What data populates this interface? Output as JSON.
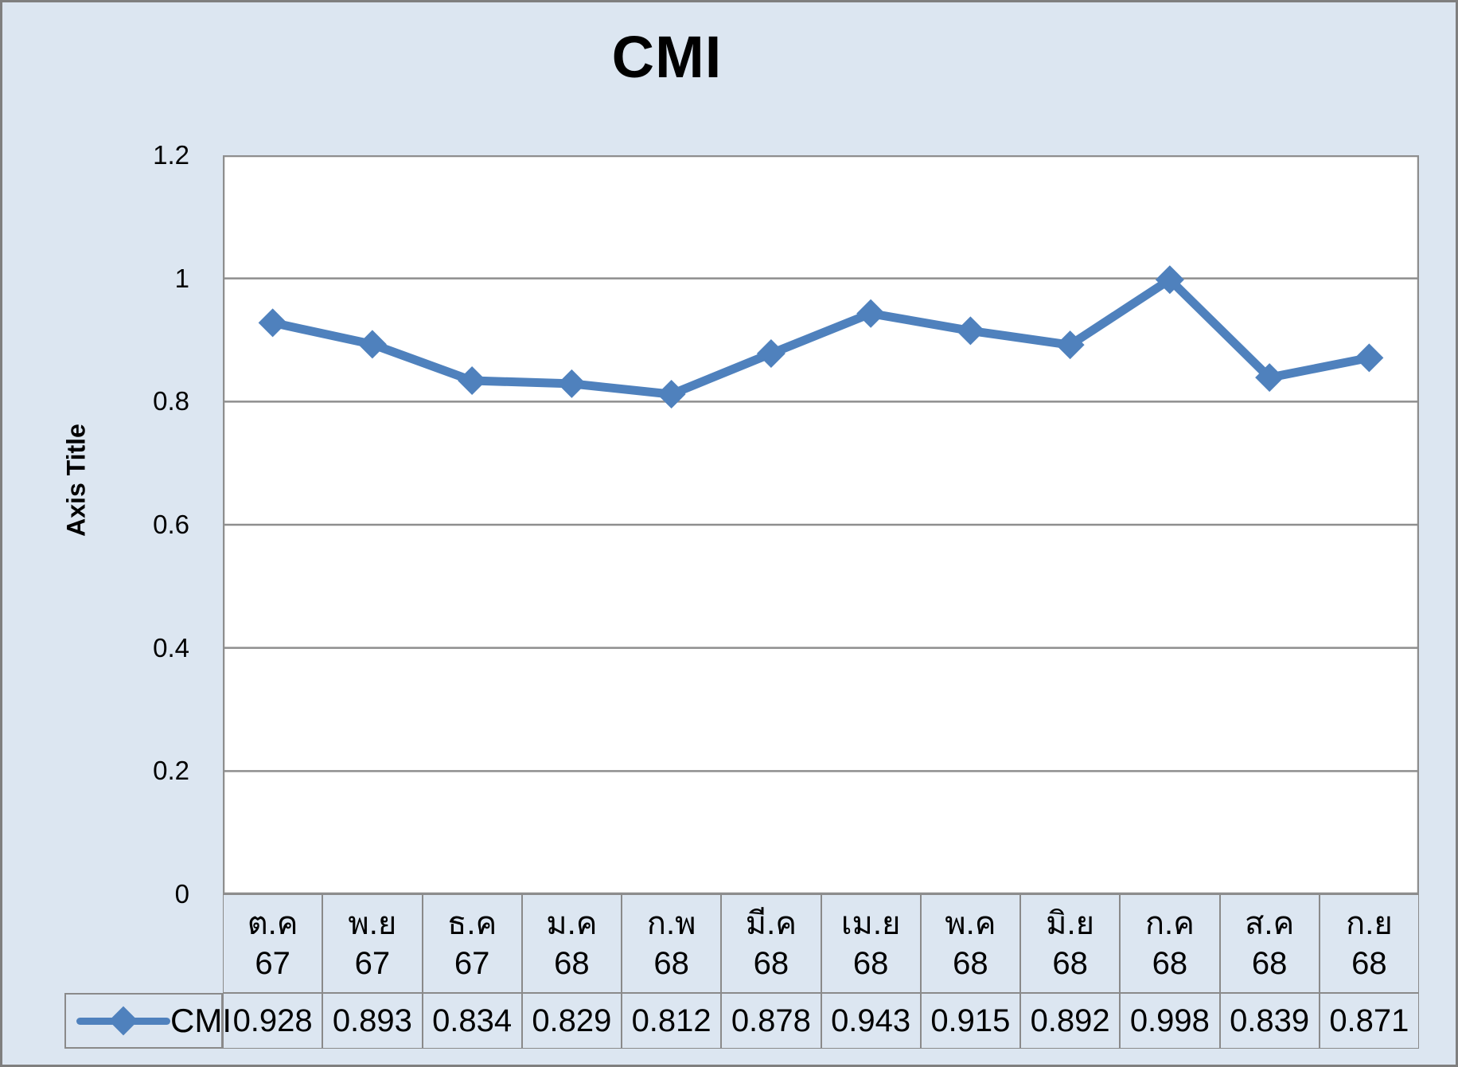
{
  "title": "CMI",
  "y_axis": {
    "title": "Axis Title"
  },
  "legend": {
    "label": "CMI"
  },
  "chart_data": {
    "type": "line",
    "title": "CMI",
    "ylabel": "Axis Title",
    "ylim": [
      0,
      1.2
    ],
    "y_ticks": [
      "1.2",
      "1",
      "0.8",
      "0.6",
      "0.4",
      "0.2",
      "0"
    ],
    "grid": true,
    "legend_position": "data-table-left",
    "categories": [
      "ต.ค 67",
      "พ.ย 67",
      "ธ.ค 67",
      "ม.ค 68",
      "ก.พ 68",
      "มี.ค 68",
      "เม.ย 68",
      "พ.ค 68",
      "มิ.ย 68",
      "ก.ค 68",
      "ส.ค 68",
      "ก.ย 68"
    ],
    "categories_two_line": [
      {
        "month": "ต.ค",
        "year": "67"
      },
      {
        "month": "พ.ย",
        "year": "67"
      },
      {
        "month": "ธ.ค",
        "year": "67"
      },
      {
        "month": "ม.ค",
        "year": "68"
      },
      {
        "month": "ก.พ",
        "year": "68"
      },
      {
        "month": "มี.ค",
        "year": "68"
      },
      {
        "month": "เม.ย",
        "year": "68"
      },
      {
        "month": "พ.ค",
        "year": "68"
      },
      {
        "month": "มิ.ย",
        "year": "68"
      },
      {
        "month": "ก.ค",
        "year": "68"
      },
      {
        "month": "ส.ค",
        "year": "68"
      },
      {
        "month": "ก.ย",
        "year": "68"
      }
    ],
    "series": [
      {
        "name": "CMI",
        "values": [
          0.928,
          0.893,
          0.834,
          0.829,
          0.812,
          0.878,
          0.943,
          0.915,
          0.892,
          0.998,
          0.839,
          0.871
        ],
        "value_labels": [
          "0.928",
          "0.893",
          "0.834",
          "0.829",
          "0.812",
          "0.878",
          "0.943",
          "0.915",
          "0.892",
          "0.998",
          "0.839",
          "0.871"
        ]
      }
    ],
    "colors": {
      "series": "#4f81bd",
      "chart_background": "#dce6f1",
      "plot_background": "#ffffff",
      "gridline": "#8e8e8e",
      "table_border": "#8a8a8a",
      "outer_border": "#7f7f7f",
      "text": "#000000"
    }
  }
}
